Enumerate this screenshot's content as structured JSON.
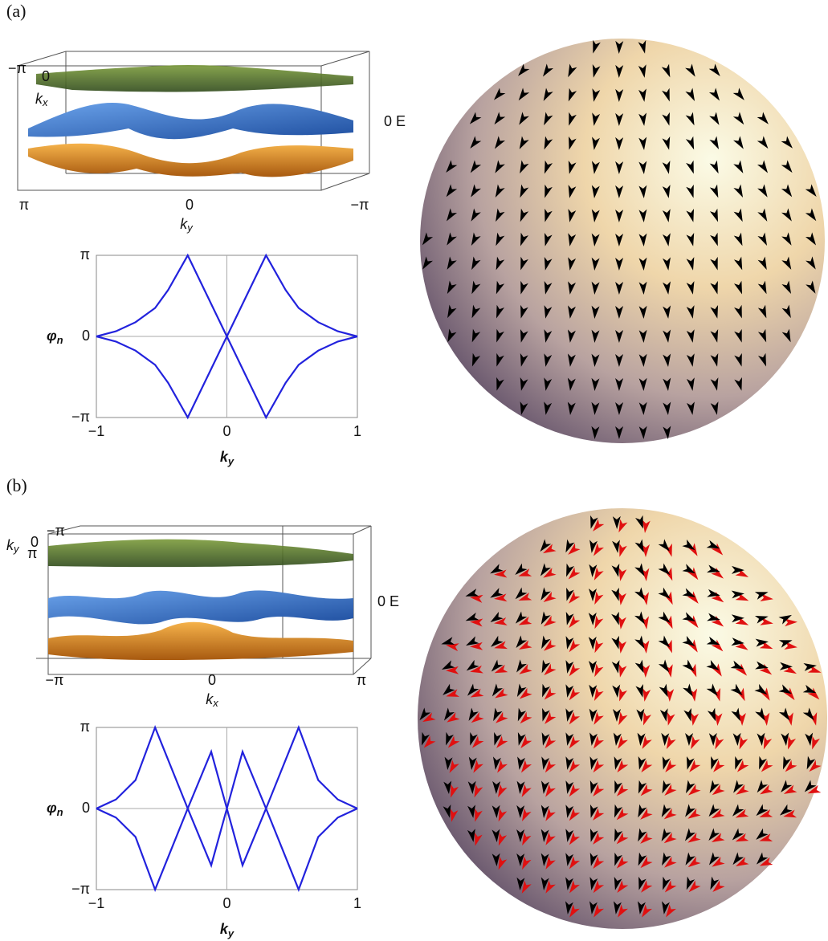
{
  "figure": {
    "panels": [
      {
        "label": "(a)",
        "surface": {
          "corner_ticks": [
            "−π",
            "0"
          ],
          "depth_label": "k",
          "depth_sub": "x",
          "energy_label": "0 E",
          "xticks": [
            "π",
            "0",
            "−π"
          ],
          "xlabel": "k",
          "xlabel_sub": "y"
        }
      },
      {
        "label": "(b)",
        "surface": {
          "corner_ticks": [
            "−π",
            "0",
            "π"
          ],
          "depth_label": "k",
          "depth_sub": "y",
          "energy_label": "0 E",
          "xticks": [
            "−π",
            "0",
            "π"
          ],
          "xlabel": "k",
          "xlabel_sub": "x"
        }
      }
    ]
  },
  "chart_data": [
    {
      "type": "line",
      "xlabel": {
        "base": "k",
        "sub": "y"
      },
      "ylabel": {
        "base": "φ",
        "sub": "n"
      },
      "x": [
        -1,
        -0.85,
        -0.7,
        -0.55,
        -0.45,
        -0.3,
        -0.15,
        0,
        0.15,
        0.3,
        0.45,
        0.55,
        0.7,
        0.85,
        1
      ],
      "series": [
        {
          "color": "#2222dd",
          "values": [
            0,
            0.2,
            0.55,
            1.1,
            1.8,
            3.14,
            1.57,
            0,
            -1.57,
            -3.14,
            -1.8,
            -1.1,
            -0.55,
            -0.2,
            0
          ]
        },
        {
          "color": "#2222dd",
          "values": [
            0,
            -0.2,
            -0.55,
            -1.1,
            -1.8,
            -3.14,
            -1.57,
            0,
            1.57,
            3.14,
            1.8,
            1.1,
            0.55,
            0.2,
            0
          ]
        }
      ],
      "xlim": [
        -1,
        1
      ],
      "ylim": [
        -3.14159,
        3.14159
      ],
      "xticks": [
        {
          "value": -1,
          "label": "−1"
        },
        0,
        1
      ],
      "yticks": [
        {
          "value": -3.14159,
          "label": "−π"
        },
        0,
        {
          "value": 3.14159,
          "label": "π"
        }
      ]
    },
    {
      "type": "line",
      "xlabel": {
        "base": "k",
        "sub": "y"
      },
      "ylabel": {
        "base": "φ",
        "sub": "n"
      },
      "x": [
        -1,
        -0.85,
        -0.7,
        -0.55,
        -0.3,
        -0.12,
        0,
        0.12,
        0.3,
        0.55,
        0.7,
        0.85,
        1
      ],
      "series": [
        {
          "color": "#2222dd",
          "values": [
            0,
            0.35,
            1.1,
            3.14,
            0,
            -2.2,
            0,
            2.2,
            0,
            -3.14,
            -1.1,
            -0.35,
            0
          ]
        },
        {
          "color": "#2222dd",
          "values": [
            0,
            -0.35,
            -1.1,
            -3.14,
            0,
            2.2,
            0,
            -2.2,
            0,
            3.14,
            1.1,
            0.35,
            0
          ]
        }
      ],
      "xlim": [
        -1,
        1
      ],
      "ylim": [
        -3.14159,
        3.14159
      ],
      "xticks": [
        {
          "value": -1,
          "label": "−1"
        },
        0,
        1
      ],
      "yticks": [
        {
          "value": -3.14159,
          "label": "−π"
        },
        0,
        {
          "value": 3.14159,
          "label": "π"
        }
      ]
    }
  ]
}
